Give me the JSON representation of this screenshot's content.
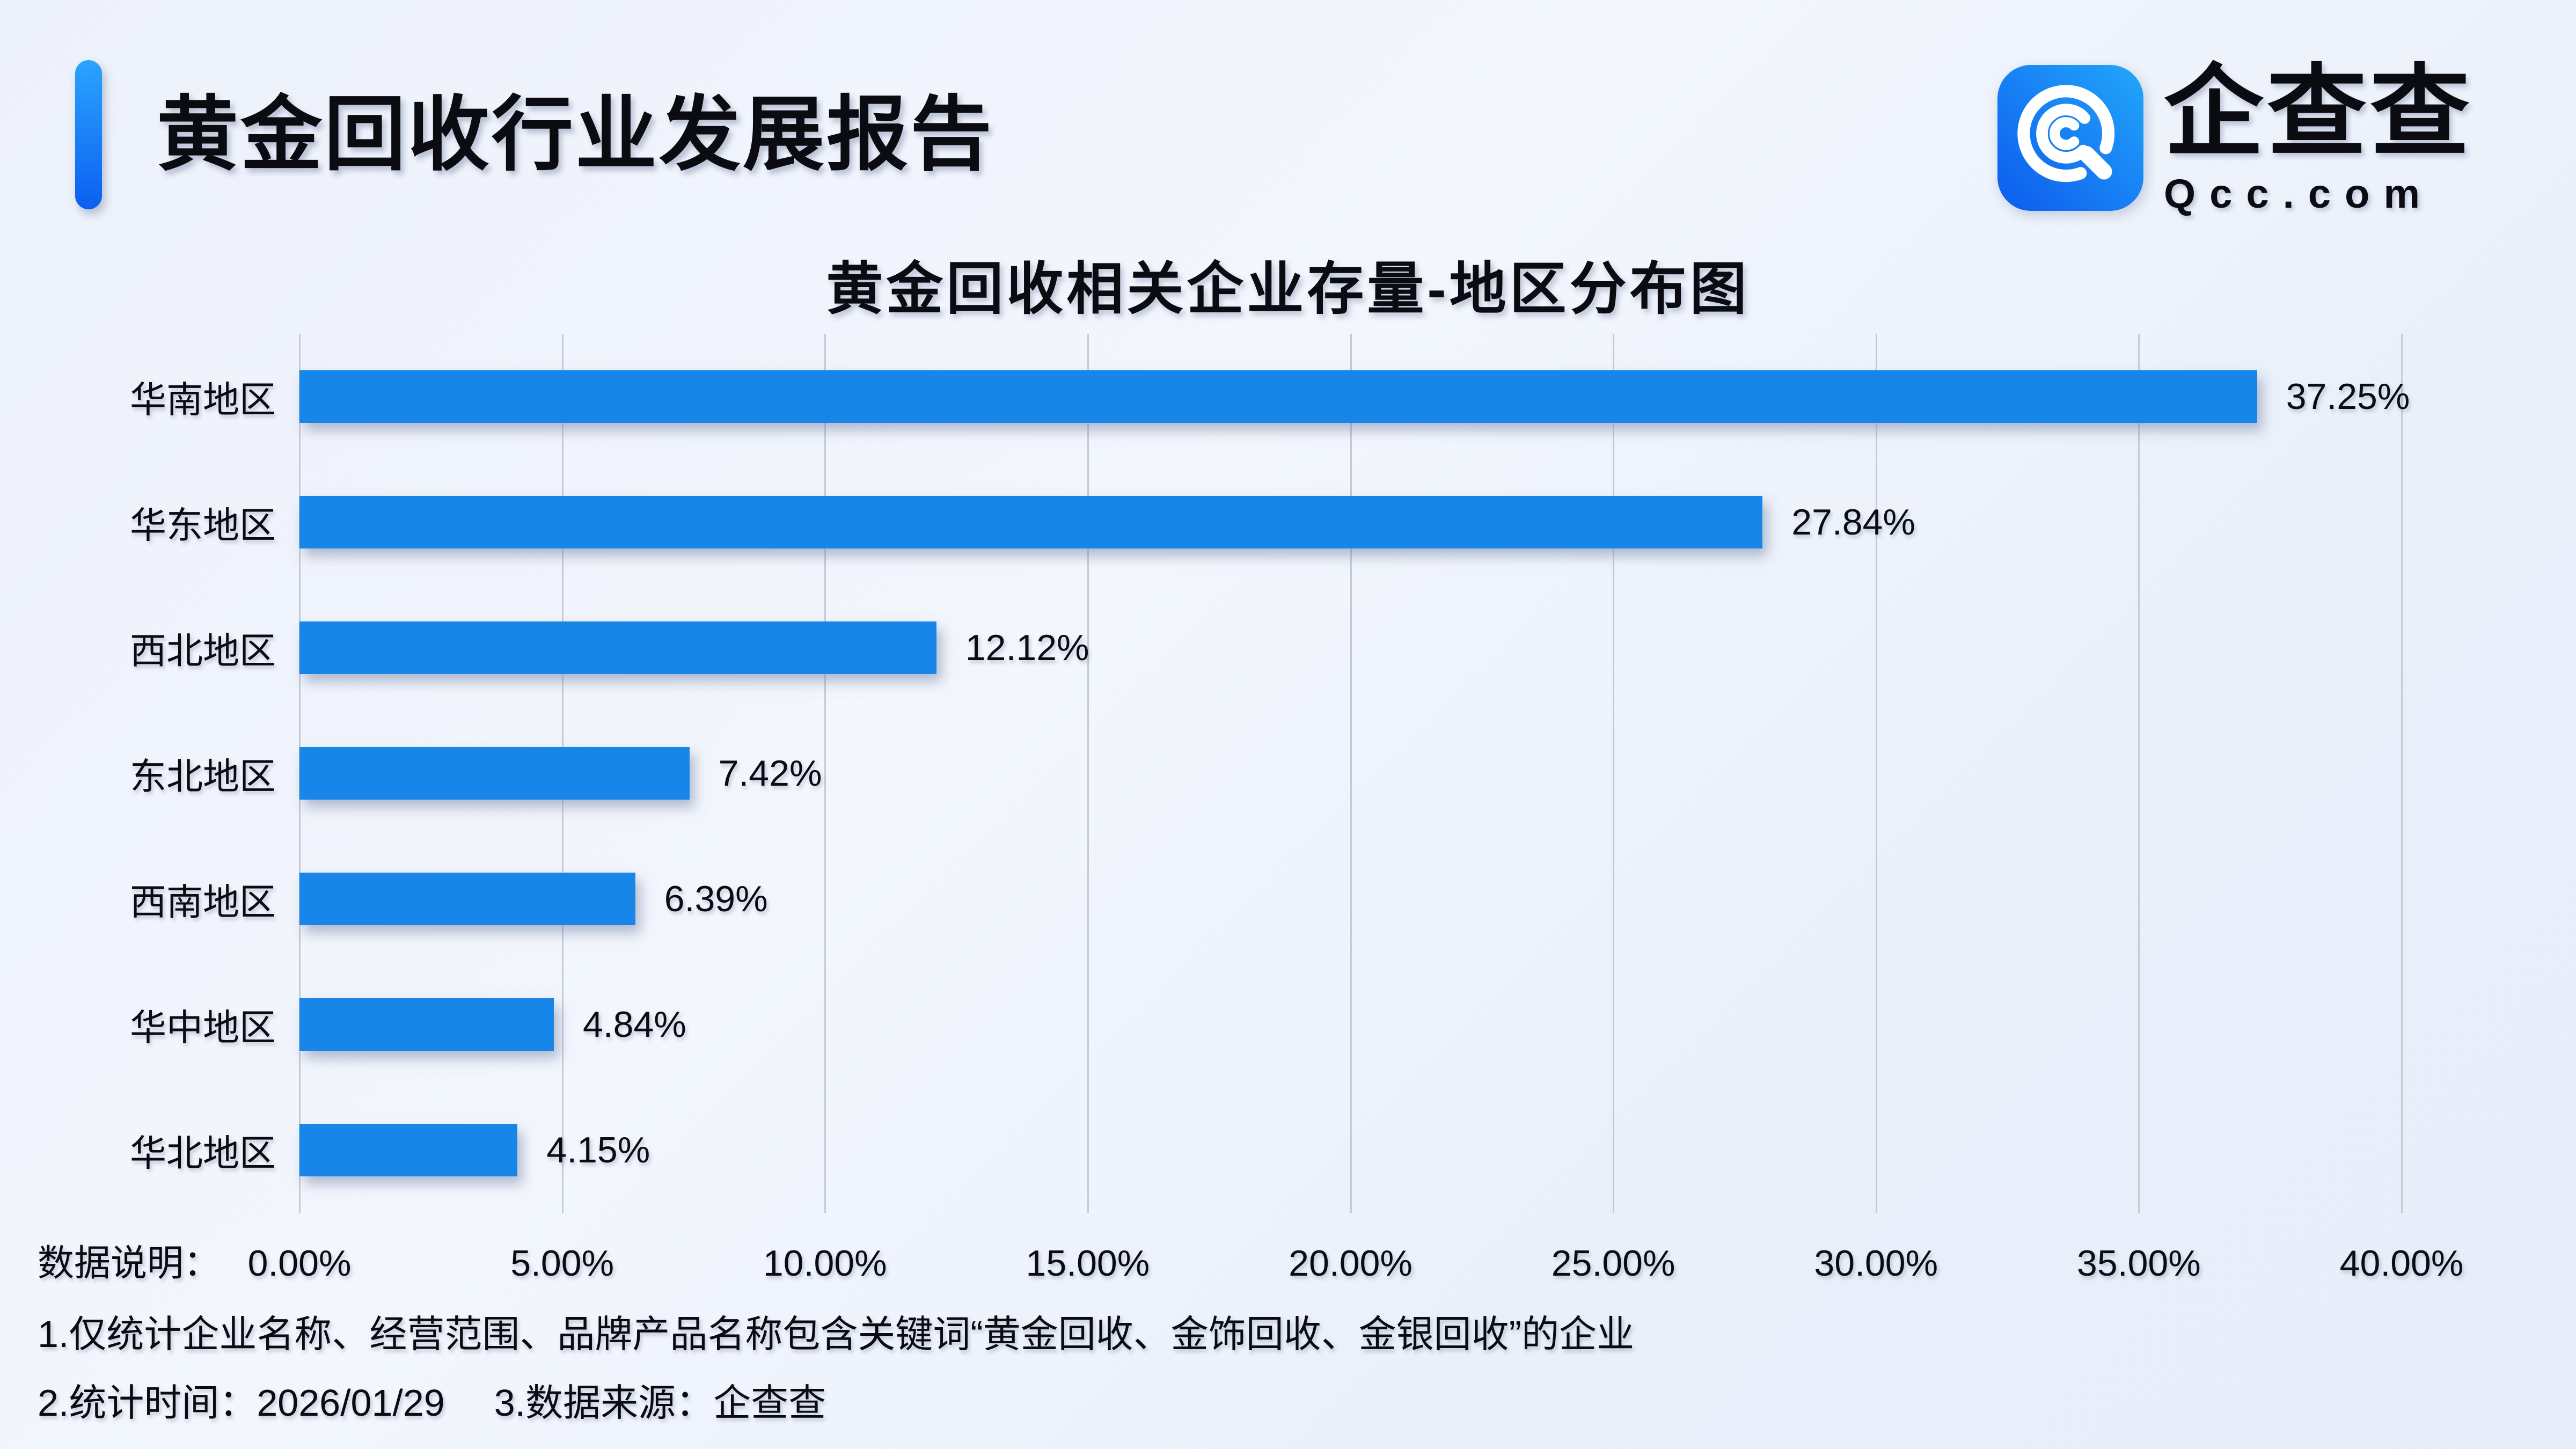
{
  "page": {
    "report_title": "黄金回收行业发展报告",
    "brand": {
      "name_cn": "企查查",
      "domain": "Qcc.com"
    },
    "notes_label": "数据说明：",
    "notes": [
      "1.仅统计企业名称、经营范围、品牌产品名称包含关键词“黄金回收、金饰回收、金银回收”的企业",
      "2.统计时间：2026/01/29",
      "3.数据来源：企查查"
    ]
  },
  "colors": {
    "bar": "#1786e8",
    "gridline": "#c6cad5",
    "accent_top": "#2ba4ff",
    "accent_bottom": "#0b5ff0",
    "logo_gradient_from": "#0d5bee",
    "logo_gradient_to": "#22a7fa",
    "text": "#0a0c12"
  },
  "chart_data": {
    "type": "bar",
    "orientation": "horizontal",
    "title": "黄金回收相关企业存量-地区分布图",
    "categories": [
      "华南地区",
      "华东地区",
      "西北地区",
      "东北地区",
      "西南地区",
      "华中地区",
      "华北地区"
    ],
    "values": [
      37.25,
      27.84,
      12.12,
      7.42,
      6.39,
      4.84,
      4.15
    ],
    "value_labels": [
      "37.25%",
      "27.84%",
      "12.12%",
      "7.42%",
      "6.39%",
      "4.84%",
      "4.15%"
    ],
    "x_ticks": [
      "0.00%",
      "5.00%",
      "10.00%",
      "15.00%",
      "20.00%",
      "25.00%",
      "30.00%",
      "35.00%",
      "40.00%"
    ],
    "xlim": [
      0,
      40
    ],
    "xlabel": "",
    "ylabel": "",
    "grid": "vertical",
    "legend": "none"
  }
}
